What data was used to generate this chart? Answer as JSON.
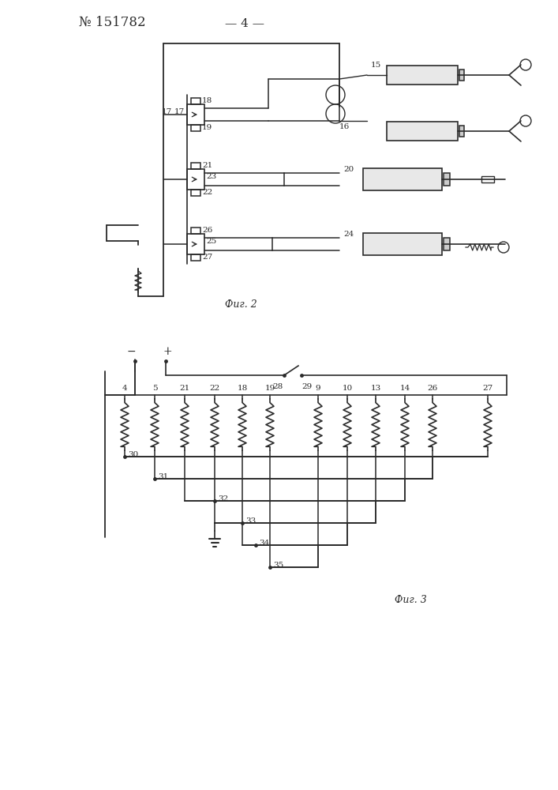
{
  "title": "№ 151782",
  "page_num": "— 4 —",
  "fig2_caption": "Фиг. 2",
  "fig3_caption": "Фиг. 3",
  "bg_color": "#ffffff",
  "lc": "#2a2a2a",
  "fig3_resistor_labels": [
    "4",
    "5",
    "21",
    "22",
    "18",
    "19",
    "9",
    "10",
    "13",
    "14",
    "26",
    "27"
  ],
  "fig3_bottom_labels": [
    "30",
    "31",
    "32",
    "33",
    "34",
    "35"
  ]
}
